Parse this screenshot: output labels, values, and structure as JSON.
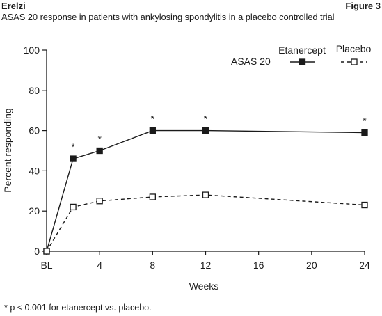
{
  "header": {
    "left": "Erelzi",
    "right": "Figure 3",
    "subtitle": "ASAS 20 response in patients with ankylosing spondylitis in a placebo controlled trial"
  },
  "footnote": "* p < 0.001 for etanercept vs. placebo.",
  "chart_data": {
    "type": "line",
    "xlabel": "Weeks",
    "ylabel": "Percent responding",
    "xlim": [
      0,
      24
    ],
    "ylim": [
      0,
      100
    ],
    "x_ticks": [
      0,
      4,
      8,
      12,
      16,
      20,
      24
    ],
    "x_tick_labels": [
      "BL",
      "4",
      "8",
      "12",
      "16",
      "20",
      "24"
    ],
    "y_ticks": [
      0,
      20,
      40,
      60,
      80,
      100
    ],
    "legend_title": "ASAS 20",
    "legend_position": "top-right",
    "grid": false,
    "series": [
      {
        "name": "Etanercept",
        "style": "solid",
        "marker": "filled-square",
        "color": "#1a1a1a",
        "x": [
          0,
          2,
          4,
          8,
          12,
          24
        ],
        "y": [
          0,
          46,
          50,
          60,
          60,
          59
        ]
      },
      {
        "name": "Placebo",
        "style": "dashed",
        "marker": "open-square",
        "color": "#1a1a1a",
        "x": [
          0,
          2,
          4,
          8,
          12,
          24
        ],
        "y": [
          0,
          22,
          25,
          27,
          28,
          23
        ]
      }
    ],
    "annotations": [
      {
        "text": "*",
        "x": 2,
        "y": 46
      },
      {
        "text": "*",
        "x": 4,
        "y": 50
      },
      {
        "text": "*",
        "x": 8,
        "y": 60
      },
      {
        "text": "*",
        "x": 12,
        "y": 60
      },
      {
        "text": "*",
        "x": 24,
        "y": 59
      }
    ]
  }
}
